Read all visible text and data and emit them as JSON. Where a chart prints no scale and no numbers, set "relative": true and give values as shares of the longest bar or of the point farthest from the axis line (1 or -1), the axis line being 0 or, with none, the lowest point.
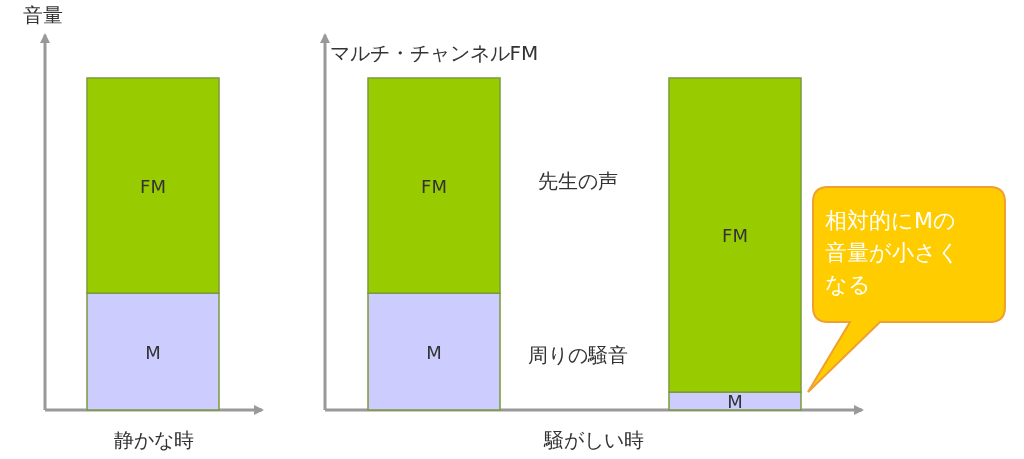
{
  "chart_data": [
    {
      "type": "bar",
      "stacked": true,
      "relative": true,
      "ylabel": "音量",
      "xlabel": "静かな時",
      "categories": [
        null
      ],
      "series": [
        {
          "name": "M",
          "color": "#ccccff",
          "values": [
            0.352
          ]
        },
        {
          "name": "FM",
          "color": "#99cc00",
          "values": [
            0.648
          ]
        }
      ]
    },
    {
      "type": "bar",
      "stacked": true,
      "relative": true,
      "xlabel": "騒がしい時",
      "categories": [
        "マルチ・チャンネルFM",
        null
      ],
      "annotations": [
        "先生の声",
        "周りの騒音",
        "相対的にMの音量が小さくなる"
      ],
      "series": [
        {
          "name": "M",
          "color": "#ccccff",
          "values": [
            0.352,
            0.054
          ]
        },
        {
          "name": "FM",
          "color": "#99cc00",
          "values": [
            0.648,
            0.946
          ]
        }
      ]
    }
  ]
}
